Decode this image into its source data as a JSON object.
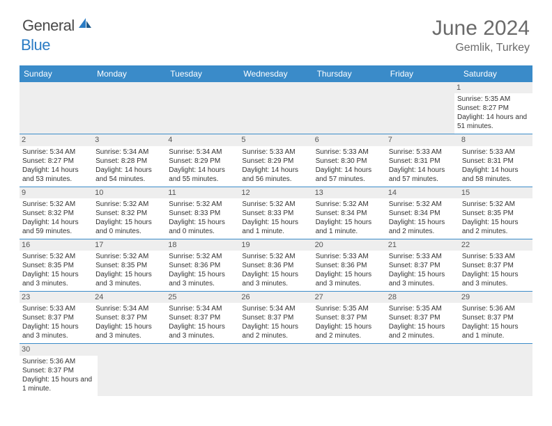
{
  "brand": {
    "text_general": "General",
    "text_blue": "Blue",
    "icon_color": "#2b7cc4"
  },
  "title": {
    "month_year": "June 2024",
    "location": "Gemlik, Turkey",
    "title_fontsize": 30,
    "location_fontsize": 16,
    "title_color": "#6a6a6a"
  },
  "calendar": {
    "header_bg": "#3a8bc9",
    "header_text_color": "#ffffff",
    "daynum_bg": "#eeeeee",
    "cell_border_color": "#3a8bc9",
    "body_text_color": "#333333",
    "body_fontsize": 10,
    "day_headers": [
      "Sunday",
      "Monday",
      "Tuesday",
      "Wednesday",
      "Thursday",
      "Friday",
      "Saturday"
    ],
    "weeks": [
      [
        null,
        null,
        null,
        null,
        null,
        null,
        {
          "day": "1",
          "sunrise": "Sunrise: 5:35 AM",
          "sunset": "Sunset: 8:27 PM",
          "daylight": "Daylight: 14 hours and 51 minutes."
        }
      ],
      [
        {
          "day": "2",
          "sunrise": "Sunrise: 5:34 AM",
          "sunset": "Sunset: 8:27 PM",
          "daylight": "Daylight: 14 hours and 53 minutes."
        },
        {
          "day": "3",
          "sunrise": "Sunrise: 5:34 AM",
          "sunset": "Sunset: 8:28 PM",
          "daylight": "Daylight: 14 hours and 54 minutes."
        },
        {
          "day": "4",
          "sunrise": "Sunrise: 5:34 AM",
          "sunset": "Sunset: 8:29 PM",
          "daylight": "Daylight: 14 hours and 55 minutes."
        },
        {
          "day": "5",
          "sunrise": "Sunrise: 5:33 AM",
          "sunset": "Sunset: 8:29 PM",
          "daylight": "Daylight: 14 hours and 56 minutes."
        },
        {
          "day": "6",
          "sunrise": "Sunrise: 5:33 AM",
          "sunset": "Sunset: 8:30 PM",
          "daylight": "Daylight: 14 hours and 57 minutes."
        },
        {
          "day": "7",
          "sunrise": "Sunrise: 5:33 AM",
          "sunset": "Sunset: 8:31 PM",
          "daylight": "Daylight: 14 hours and 57 minutes."
        },
        {
          "day": "8",
          "sunrise": "Sunrise: 5:33 AM",
          "sunset": "Sunset: 8:31 PM",
          "daylight": "Daylight: 14 hours and 58 minutes."
        }
      ],
      [
        {
          "day": "9",
          "sunrise": "Sunrise: 5:32 AM",
          "sunset": "Sunset: 8:32 PM",
          "daylight": "Daylight: 14 hours and 59 minutes."
        },
        {
          "day": "10",
          "sunrise": "Sunrise: 5:32 AM",
          "sunset": "Sunset: 8:32 PM",
          "daylight": "Daylight: 15 hours and 0 minutes."
        },
        {
          "day": "11",
          "sunrise": "Sunrise: 5:32 AM",
          "sunset": "Sunset: 8:33 PM",
          "daylight": "Daylight: 15 hours and 0 minutes."
        },
        {
          "day": "12",
          "sunrise": "Sunrise: 5:32 AM",
          "sunset": "Sunset: 8:33 PM",
          "daylight": "Daylight: 15 hours and 1 minute."
        },
        {
          "day": "13",
          "sunrise": "Sunrise: 5:32 AM",
          "sunset": "Sunset: 8:34 PM",
          "daylight": "Daylight: 15 hours and 1 minute."
        },
        {
          "day": "14",
          "sunrise": "Sunrise: 5:32 AM",
          "sunset": "Sunset: 8:34 PM",
          "daylight": "Daylight: 15 hours and 2 minutes."
        },
        {
          "day": "15",
          "sunrise": "Sunrise: 5:32 AM",
          "sunset": "Sunset: 8:35 PM",
          "daylight": "Daylight: 15 hours and 2 minutes."
        }
      ],
      [
        {
          "day": "16",
          "sunrise": "Sunrise: 5:32 AM",
          "sunset": "Sunset: 8:35 PM",
          "daylight": "Daylight: 15 hours and 3 minutes."
        },
        {
          "day": "17",
          "sunrise": "Sunrise: 5:32 AM",
          "sunset": "Sunset: 8:35 PM",
          "daylight": "Daylight: 15 hours and 3 minutes."
        },
        {
          "day": "18",
          "sunrise": "Sunrise: 5:32 AM",
          "sunset": "Sunset: 8:36 PM",
          "daylight": "Daylight: 15 hours and 3 minutes."
        },
        {
          "day": "19",
          "sunrise": "Sunrise: 5:32 AM",
          "sunset": "Sunset: 8:36 PM",
          "daylight": "Daylight: 15 hours and 3 minutes."
        },
        {
          "day": "20",
          "sunrise": "Sunrise: 5:33 AM",
          "sunset": "Sunset: 8:36 PM",
          "daylight": "Daylight: 15 hours and 3 minutes."
        },
        {
          "day": "21",
          "sunrise": "Sunrise: 5:33 AM",
          "sunset": "Sunset: 8:37 PM",
          "daylight": "Daylight: 15 hours and 3 minutes."
        },
        {
          "day": "22",
          "sunrise": "Sunrise: 5:33 AM",
          "sunset": "Sunset: 8:37 PM",
          "daylight": "Daylight: 15 hours and 3 minutes."
        }
      ],
      [
        {
          "day": "23",
          "sunrise": "Sunrise: 5:33 AM",
          "sunset": "Sunset: 8:37 PM",
          "daylight": "Daylight: 15 hours and 3 minutes."
        },
        {
          "day": "24",
          "sunrise": "Sunrise: 5:34 AM",
          "sunset": "Sunset: 8:37 PM",
          "daylight": "Daylight: 15 hours and 3 minutes."
        },
        {
          "day": "25",
          "sunrise": "Sunrise: 5:34 AM",
          "sunset": "Sunset: 8:37 PM",
          "daylight": "Daylight: 15 hours and 3 minutes."
        },
        {
          "day": "26",
          "sunrise": "Sunrise: 5:34 AM",
          "sunset": "Sunset: 8:37 PM",
          "daylight": "Daylight: 15 hours and 2 minutes."
        },
        {
          "day": "27",
          "sunrise": "Sunrise: 5:35 AM",
          "sunset": "Sunset: 8:37 PM",
          "daylight": "Daylight: 15 hours and 2 minutes."
        },
        {
          "day": "28",
          "sunrise": "Sunrise: 5:35 AM",
          "sunset": "Sunset: 8:37 PM",
          "daylight": "Daylight: 15 hours and 2 minutes."
        },
        {
          "day": "29",
          "sunrise": "Sunrise: 5:36 AM",
          "sunset": "Sunset: 8:37 PM",
          "daylight": "Daylight: 15 hours and 1 minute."
        }
      ],
      [
        {
          "day": "30",
          "sunrise": "Sunrise: 5:36 AM",
          "sunset": "Sunset: 8:37 PM",
          "daylight": "Daylight: 15 hours and 1 minute."
        },
        null,
        null,
        null,
        null,
        null,
        null
      ]
    ]
  }
}
